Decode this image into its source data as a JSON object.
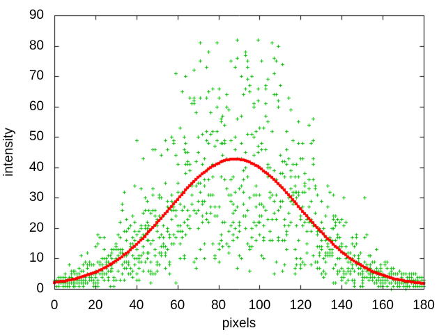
{
  "chart_data": {
    "type": "scatter",
    "title": "",
    "xlabel": "pixels",
    "ylabel": "intensity",
    "xlim": [
      0,
      180
    ],
    "ylim": [
      0,
      90
    ],
    "x_ticks": [
      0,
      20,
      40,
      60,
      80,
      100,
      120,
      140,
      160,
      180
    ],
    "y_ticks": [
      0,
      10,
      20,
      30,
      40,
      50,
      60,
      70,
      80,
      90
    ],
    "grid": false,
    "legend": "none",
    "background_color": "#ffffff",
    "axis_color": "#000000",
    "tick_style": "inward-mirrored",
    "series": [
      {
        "name": "intensity-samples",
        "plot_type": "scatter",
        "marker": "plus",
        "color": "#00bb00",
        "x_start": 0,
        "x_end": 180,
        "x_step": 1,
        "samples_per_x": 6,
        "seed": 20240917,
        "noise": "gamma_k3_multiplicative",
        "clip_y": [
          0,
          83
        ],
        "integer_values": true,
        "fit": {
          "shape": "gaussian",
          "amplitude": 41.5,
          "center": 88,
          "sigma": 32,
          "baseline": 1.2
        },
        "observed_max": {
          "x": 89,
          "y": 82
        }
      },
      {
        "name": "gaussian-fit-curve",
        "plot_type": "line",
        "color": "#ff0000",
        "line_width": 4,
        "fit": {
          "shape": "gaussian",
          "amplitude": 41.5,
          "center": 88,
          "sigma": 32,
          "baseline": 1.2
        },
        "peak_value": 42.7,
        "edge_value": 1.5
      }
    ],
    "notable_points": [
      {
        "x": 89,
        "y": 82
      },
      {
        "x": 93,
        "y": 77
      },
      {
        "x": 94,
        "y": 75
      },
      {
        "x": 74,
        "y": 73
      },
      {
        "x": 107,
        "y": 71
      },
      {
        "x": 126,
        "y": 56
      },
      {
        "x": 63,
        "y": 50
      },
      {
        "x": 40,
        "y": 49
      }
    ]
  }
}
